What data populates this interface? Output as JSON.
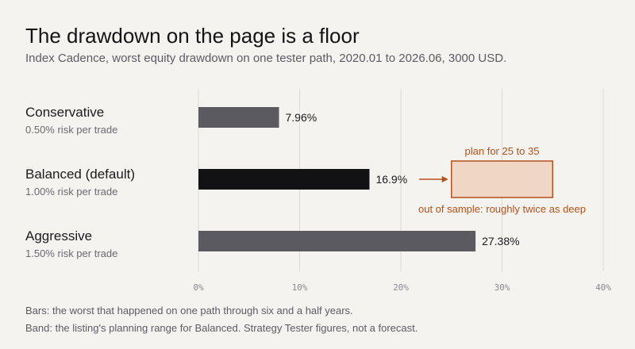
{
  "title": "The drawdown on the page is a floor",
  "subtitle": "Index Cadence, worst equity drawdown on one tester path, 2020.01 to 2026.06, 3000 USD.",
  "footnotes": [
    "Bars: the worst that happened on one path through six and a half years.",
    "Band: the listing's planning range for Balanced. Strategy Tester figures, not a forecast."
  ],
  "colors": {
    "bar_muted": "#5a5a60",
    "bar_highlight": "#121215",
    "grid": "#dcdad5",
    "band_fill": "#f0d6c4",
    "band_stroke": "#b5511a",
    "annotation": "#b5511a"
  },
  "chart_data": {
    "type": "bar",
    "orientation": "horizontal",
    "categories": [
      "Conservative",
      "Balanced (default)",
      "Aggressive"
    ],
    "category_sublabels": [
      "0.50% risk per trade",
      "1.00% risk per trade",
      "1.50% risk per trade"
    ],
    "values": [
      7.96,
      16.9,
      27.38
    ],
    "value_labels": [
      "7.96%",
      "16.9%",
      "27.38%"
    ],
    "highlight_index": 1,
    "xlim": [
      0,
      40
    ],
    "xticks": [
      0,
      10,
      20,
      30,
      40
    ],
    "xtick_labels": [
      "0%",
      "10%",
      "20%",
      "30%",
      "40%"
    ],
    "grid": true,
    "band": {
      "category_index": 1,
      "range": [
        25,
        35
      ],
      "label_top": "plan for 25 to 35",
      "label_bottom": "out of sample: roughly twice as deep",
      "arrow": true
    }
  }
}
